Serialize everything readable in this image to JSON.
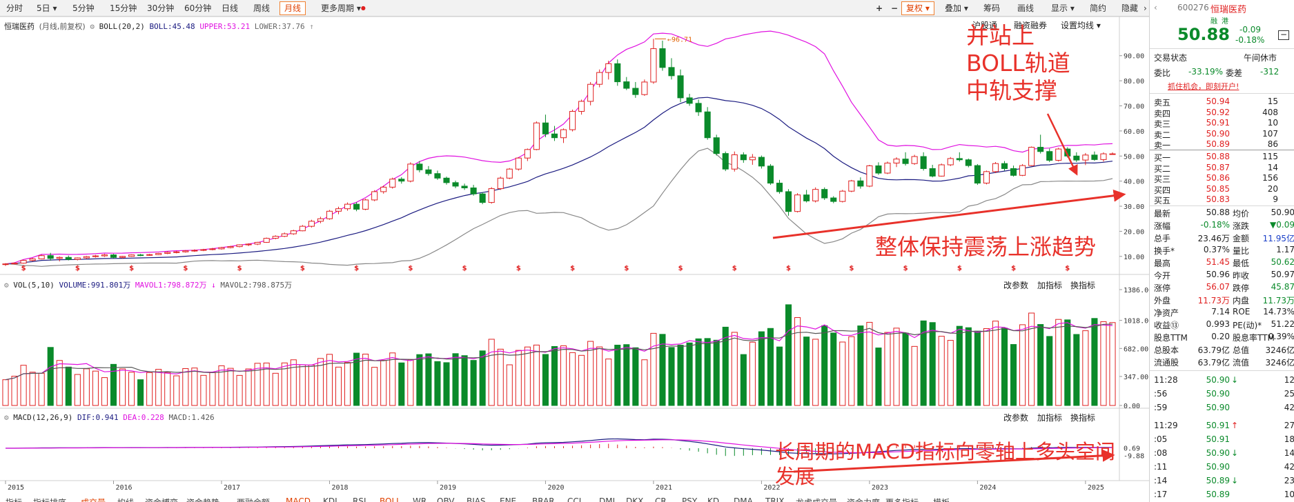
{
  "toolbar": {
    "periods": [
      "分时",
      "5日",
      "5分钟",
      "15分钟",
      "30分钟",
      "60分钟",
      "日线",
      "周线",
      "月线",
      "更多周期"
    ],
    "active": "月线",
    "right": [
      "复权",
      "叠加",
      "筹码",
      "画线",
      "显示",
      "简约",
      "隐藏"
    ]
  },
  "main_info": {
    "stock": "恒瑞医药",
    "mode": "(月线,前复权)",
    "indicator": "BOLL(20,2)",
    "boll": "BOLL:45.48",
    "upper": "UPPER:53.21",
    "lower": "LOWER:37.76"
  },
  "main_links": [
    "沪股通",
    "融资融券",
    "设置均线"
  ],
  "vol_info": {
    "name": "VOL(5,10)",
    "volume": "VOLUME:991.801万",
    "mavol1": "MAVOL1:798.872万",
    "mavol2": "MAVOL2:798.875万"
  },
  "vol_links": [
    "改参数",
    "加指标",
    "换指标"
  ],
  "macd_info": {
    "name": "MACD(12,26,9)",
    "dif": "DIF:0.941",
    "dea": "DEA:0.228",
    "macd": "MACD:1.426"
  },
  "macd_links": [
    "改参数",
    "加指标",
    "换指标"
  ],
  "annotations": {
    "top": [
      "并站上",
      "BOLL轨道",
      "中轨支撑"
    ],
    "middle": "整体保持震荡上涨趋势",
    "bottom": [
      "长周期的MACD指标向零轴上多头空间",
      "发展"
    ]
  },
  "price_axis": [
    "90.00",
    "80.00",
    "70.00",
    "60.00",
    "50.00",
    "40.00",
    "30.00",
    "20.00",
    "10.00"
  ],
  "vol_axis": [
    "1386.00",
    "1018.00",
    "682.00",
    "347.00",
    "0.00"
  ],
  "macd_axis": [
    "0.69",
    "-9.88"
  ],
  "high_mark": "96.71",
  "years": [
    "2015",
    "2016",
    "2017",
    "2018",
    "2019",
    "2020",
    "2021",
    "2022",
    "2023",
    "2024",
    "2025"
  ],
  "bottom_tabs": [
    "指标",
    "指标排序",
    "成交量",
    "均线",
    "资金博弈",
    "资金趋势",
    "两融余额",
    "MACD",
    "KDJ",
    "RSI",
    "BOLL",
    "WR",
    "OBV",
    "BIAS",
    "ENE",
    "BRAR",
    "CCI",
    "DMI",
    "DKX",
    "CR",
    "PSY",
    "KD",
    "DMA",
    "TRIX",
    "龙虎成交量",
    "资金力度",
    "更多指标",
    "模板"
  ],
  "chart_data": {
    "type": "candlestick",
    "period": "monthly",
    "x_start": "2015-01",
    "months": 124,
    "high_label": 96.71,
    "ohlc": [
      [
        6.8,
        7.3,
        6.2,
        7.0
      ],
      [
        7.0,
        7.6,
        6.8,
        7.3
      ],
      [
        7.3,
        8.6,
        7.1,
        8.4
      ],
      [
        8.4,
        9.4,
        8.0,
        9.0
      ],
      [
        9.0,
        10.7,
        8.8,
        10.3
      ],
      [
        10.3,
        11.4,
        8.3,
        9.2
      ],
      [
        9.2,
        10.0,
        8.0,
        9.6
      ],
      [
        9.6,
        10.3,
        8.4,
        8.8
      ],
      [
        8.8,
        9.6,
        8.4,
        9.4
      ],
      [
        9.4,
        10.2,
        9.0,
        9.9
      ],
      [
        9.9,
        10.6,
        9.5,
        10.2
      ],
      [
        10.2,
        11.0,
        9.8,
        10.6
      ],
      [
        10.6,
        11.0,
        9.2,
        9.6
      ],
      [
        9.6,
        10.2,
        9.2,
        10.0
      ],
      [
        10.0,
        10.8,
        9.8,
        10.6
      ],
      [
        10.6,
        11.0,
        10.1,
        10.5
      ],
      [
        10.5,
        11.0,
        10.2,
        10.7
      ],
      [
        10.7,
        11.4,
        10.5,
        11.2
      ],
      [
        11.2,
        12.0,
        10.9,
        11.6
      ],
      [
        11.6,
        12.2,
        11.2,
        11.8
      ],
      [
        11.8,
        12.5,
        11.5,
        12.2
      ],
      [
        12.2,
        12.8,
        11.8,
        12.4
      ],
      [
        12.4,
        13.0,
        12.1,
        12.7
      ],
      [
        12.7,
        13.4,
        12.4,
        13.0
      ],
      [
        13.0,
        13.8,
        12.7,
        13.5
      ],
      [
        13.5,
        14.2,
        13.2,
        13.9
      ],
      [
        13.9,
        14.8,
        13.6,
        14.6
      ],
      [
        14.6,
        15.2,
        14.1,
        14.9
      ],
      [
        14.9,
        15.8,
        14.5,
        15.6
      ],
      [
        15.6,
        17.5,
        15.4,
        17.2
      ],
      [
        17.2,
        18.4,
        16.8,
        18.0
      ],
      [
        18.0,
        19.5,
        17.7,
        19.0
      ],
      [
        19.0,
        20.6,
        18.6,
        20.2
      ],
      [
        20.2,
        22.5,
        20.0,
        22.0
      ],
      [
        22.0,
        24.6,
        21.5,
        24.0
      ],
      [
        24.0,
        25.8,
        23.2,
        25.0
      ],
      [
        25.0,
        28.5,
        24.6,
        28.0
      ],
      [
        28.0,
        29.8,
        26.8,
        29.0
      ],
      [
        29.0,
        31.5,
        28.2,
        30.8
      ],
      [
        30.8,
        31.6,
        28.0,
        28.8
      ],
      [
        28.8,
        33.0,
        28.4,
        32.5
      ],
      [
        32.5,
        36.4,
        32.0,
        35.8
      ],
      [
        35.8,
        38.2,
        35.0,
        37.6
      ],
      [
        37.6,
        41.4,
        37.0,
        40.8
      ],
      [
        40.8,
        41.6,
        39.0,
        40.0
      ],
      [
        40.0,
        47.5,
        39.5,
        46.8
      ],
      [
        46.8,
        48.0,
        43.5,
        44.5
      ],
      [
        44.5,
        46.0,
        42.2,
        43.0
      ],
      [
        43.0,
        44.2,
        40.5,
        41.2
      ],
      [
        41.2,
        41.8,
        38.6,
        39.4
      ],
      [
        39.4,
        40.2,
        37.2,
        38.0
      ],
      [
        38.0,
        39.0,
        36.5,
        37.3
      ],
      [
        37.3,
        38.5,
        34.2,
        34.9
      ],
      [
        34.9,
        35.5,
        30.8,
        31.5
      ],
      [
        31.5,
        37.6,
        31.0,
        37.0
      ],
      [
        37.0,
        41.8,
        36.5,
        41.2
      ],
      [
        41.2,
        45.2,
        40.8,
        44.8
      ],
      [
        44.8,
        49.5,
        44.2,
        49.2
      ],
      [
        49.2,
        53.0,
        48.0,
        52.6
      ],
      [
        52.6,
        63.8,
        52.3,
        63.2
      ],
      [
        63.2,
        66.5,
        57.5,
        58.8
      ],
      [
        58.8,
        62.0,
        56.0,
        57.3
      ],
      [
        57.3,
        61.0,
        55.2,
        60.5
      ],
      [
        60.5,
        68.5,
        59.8,
        67.8
      ],
      [
        67.8,
        72.5,
        66.5,
        71.8
      ],
      [
        71.8,
        79.5,
        70.2,
        78.6
      ],
      [
        78.6,
        84.5,
        77.4,
        83.3
      ],
      [
        83.3,
        88.0,
        80.5,
        86.8
      ],
      [
        86.8,
        88.5,
        78.0,
        79.6
      ],
      [
        79.6,
        81.5,
        76.3,
        77.0
      ],
      [
        77.0,
        79.5,
        73.2,
        74.5
      ],
      [
        74.5,
        80.5,
        74.0,
        79.5
      ],
      [
        79.5,
        96.71,
        78.8,
        92.8
      ],
      [
        92.8,
        96.0,
        84.0,
        85.3
      ],
      [
        85.3,
        89.0,
        80.5,
        82.0
      ],
      [
        82.0,
        84.5,
        71.5,
        73.2
      ],
      [
        73.2,
        74.8,
        70.0,
        71.0
      ],
      [
        71.0,
        72.5,
        66.0,
        67.6
      ],
      [
        67.6,
        69.5,
        56.5,
        57.3
      ],
      [
        57.3,
        58.5,
        50.2,
        51.0
      ],
      [
        51.0,
        51.8,
        44.0,
        44.8
      ],
      [
        44.8,
        51.8,
        43.8,
        50.5
      ],
      [
        50.5,
        51.5,
        47.3,
        48.5
      ],
      [
        48.5,
        50.8,
        46.5,
        49.5
      ],
      [
        49.5,
        50.2,
        45.0,
        46.0
      ],
      [
        46.0,
        46.8,
        38.5,
        39.2
      ],
      [
        39.2,
        40.5,
        35.0,
        35.8
      ],
      [
        35.8,
        36.8,
        26.2,
        27.9
      ],
      [
        27.9,
        35.2,
        27.5,
        34.5
      ],
      [
        34.5,
        36.5,
        31.5,
        32.1
      ],
      [
        32.1,
        37.5,
        31.5,
        36.7
      ],
      [
        36.7,
        37.5,
        32.5,
        33.3
      ],
      [
        33.3,
        34.0,
        31.2,
        31.9
      ],
      [
        31.9,
        36.5,
        31.5,
        36.0
      ],
      [
        36.0,
        40.5,
        35.6,
        40.1
      ],
      [
        40.1,
        41.5,
        37.0,
        38.0
      ],
      [
        38.0,
        46.5,
        37.6,
        46.1
      ],
      [
        46.1,
        47.5,
        42.5,
        43.2
      ],
      [
        43.2,
        47.8,
        42.8,
        47.2
      ],
      [
        47.2,
        49.5,
        45.6,
        48.8
      ],
      [
        48.8,
        51.5,
        46.2,
        47.0
      ],
      [
        47.0,
        50.5,
        46.5,
        49.8
      ],
      [
        49.8,
        51.5,
        44.2,
        45.0
      ],
      [
        45.0,
        46.5,
        41.5,
        42.0
      ],
      [
        42.0,
        47.0,
        41.8,
        46.5
      ],
      [
        46.5,
        49.6,
        46.0,
        49.0
      ],
      [
        49.0,
        51.5,
        47.8,
        48.5
      ],
      [
        48.5,
        49.0,
        45.5,
        46.2
      ],
      [
        46.2,
        46.8,
        38.5,
        39.2
      ],
      [
        39.2,
        44.2,
        38.7,
        43.8
      ],
      [
        43.8,
        47.6,
        43.2,
        47.0
      ],
      [
        47.0,
        48.0,
        44.2,
        45.0
      ],
      [
        45.0,
        46.2,
        41.8,
        42.3
      ],
      [
        42.3,
        46.8,
        42.0,
        46.2
      ],
      [
        46.2,
        53.8,
        46.0,
        53.5
      ],
      [
        53.5,
        58.5,
        51.0,
        51.8
      ],
      [
        51.8,
        53.0,
        47.6,
        48.3
      ],
      [
        48.3,
        53.3,
        47.8,
        52.8
      ],
      [
        52.8,
        53.5,
        49.4,
        50.0
      ],
      [
        50.0,
        51.5,
        47.6,
        48.4
      ],
      [
        48.4,
        51.2,
        46.4,
        50.4
      ],
      [
        50.4,
        51.8,
        48.1,
        48.6
      ],
      [
        48.6,
        51.45,
        47.8,
        50.88
      ],
      [
        50.88,
        51.45,
        50.62,
        50.88
      ]
    ],
    "boll_20_2": {
      "BOLL": 45.48,
      "UPPER": 53.21,
      "LOWER": 37.76
    },
    "vol_5_10": {
      "VOLUME": 991.801,
      "MAVOL1": 798.872,
      "MAVOL2": 798.875,
      "unit": "万"
    },
    "macd_12_26_9": {
      "DIF": 0.941,
      "DEA": 0.228,
      "MACD": 1.426
    },
    "price_ylim": [
      5,
      99
    ],
    "vol_ylim": [
      0,
      1386
    ],
    "macd_ylim": [
      -9.88,
      0.69
    ]
  },
  "quote": {
    "code": "600276",
    "name": "恒瑞医药",
    "flags": [
      "融",
      "港"
    ],
    "price": "50.88",
    "change": "-0.09",
    "pct": "-0.18%",
    "status_label": "交易状态",
    "status_value": "午间休市",
    "weibi_label": "委比",
    "weibi": "-33.19%",
    "weicha_label": "委差",
    "weicha": "-312",
    "promo": "抓住机会，即刻开户!",
    "asks": [
      [
        "卖五",
        "50.94",
        "15"
      ],
      [
        "卖四",
        "50.92",
        "408"
      ],
      [
        "卖三",
        "50.91",
        "10"
      ],
      [
        "卖二",
        "50.90",
        "107"
      ],
      [
        "卖一",
        "50.89",
        "86"
      ]
    ],
    "bids": [
      [
        "买一",
        "50.88",
        "115"
      ],
      [
        "买二",
        "50.87",
        "14"
      ],
      [
        "买三",
        "50.86",
        "156"
      ],
      [
        "买四",
        "50.85",
        "20"
      ],
      [
        "买五",
        "50.83",
        "9"
      ]
    ],
    "stats": [
      [
        "最新",
        "50.88",
        "均价",
        "50.90"
      ],
      [
        "涨幅",
        "-0.18%",
        "涨跌",
        "▼0.09"
      ],
      [
        "总手",
        "23.46万",
        "金额",
        "11.95亿"
      ],
      [
        "换手*",
        "0.37%",
        "量比",
        "1.17"
      ],
      [
        "最高",
        "51.45",
        "最低",
        "50.62"
      ],
      [
        "今开",
        "50.96",
        "昨收",
        "50.97"
      ],
      [
        "涨停",
        "56.07",
        "跌停",
        "45.87"
      ],
      [
        "外盘",
        "11.73万",
        "内盘",
        "11.73万"
      ],
      [
        "净资产",
        "7.14",
        "ROE",
        "14.73%"
      ],
      [
        "收益⑬",
        "0.993",
        "PE(动)*",
        "51.22"
      ],
      [
        "股息TTM",
        "0.20",
        "股息率TTM",
        "0.39%"
      ],
      [
        "总股本",
        "63.79亿",
        "总值",
        "3246亿"
      ],
      [
        "流通股",
        "63.79亿",
        "流值",
        "3246亿"
      ]
    ],
    "ticks": [
      [
        "11:28",
        "50.90",
        "↓",
        "12"
      ],
      [
        ":56",
        "50.90",
        "",
        "25"
      ],
      [
        ":59",
        "50.90",
        "",
        "42"
      ],
      [
        "11:29",
        "50.91",
        "↑",
        "27"
      ],
      [
        ":05",
        "50.91",
        "",
        "18"
      ],
      [
        ":08",
        "50.90",
        "↓",
        "14"
      ],
      [
        ":11",
        "50.90",
        "",
        "42"
      ],
      [
        ":14",
        "50.89",
        "↓",
        "23"
      ],
      [
        ":17",
        "50.89",
        "",
        "10"
      ]
    ]
  }
}
